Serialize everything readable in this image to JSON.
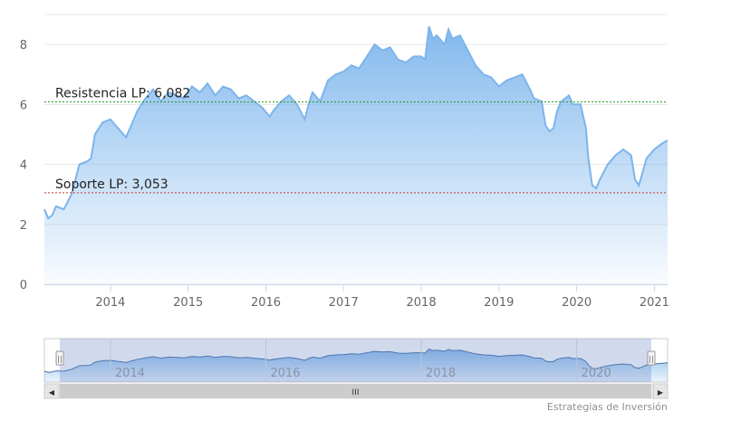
{
  "chart_data": {
    "type": "area",
    "title": "",
    "xlabel": "",
    "ylabel": "",
    "ylim": [
      0,
      9
    ],
    "xlim": [
      2013.15,
      2021.17
    ],
    "y_ticks": [
      "0",
      "2",
      "4",
      "6",
      "8"
    ],
    "x_ticks": [
      "2014",
      "2015",
      "2016",
      "2017",
      "2018",
      "2019",
      "2020",
      "2021"
    ],
    "grid": true,
    "legend": "none",
    "series": [
      {
        "x": [
          2013.15,
          2013.2,
          2013.25,
          2013.3,
          2013.4,
          2013.5,
          2013.55,
          2013.6,
          2013.7,
          2013.75,
          2013.8,
          2013.9,
          2014.0,
          2014.1,
          2014.2,
          2014.3,
          2014.35,
          2014.45,
          2014.55,
          2014.65,
          2014.75,
          2014.85,
          2014.95,
          2015.05,
          2015.15,
          2015.25,
          2015.35,
          2015.45,
          2015.55,
          2015.65,
          2015.75,
          2015.85,
          2015.95,
          2016.05,
          2016.1,
          2016.2,
          2016.3,
          2016.4,
          2016.5,
          2016.55,
          2016.6,
          2016.7,
          2016.8,
          2016.9,
          2017.0,
          2017.1,
          2017.2,
          2017.3,
          2017.4,
          2017.5,
          2017.6,
          2017.7,
          2017.8,
          2017.9,
          2018.0,
          2018.05,
          2018.1,
          2018.15,
          2018.2,
          2018.3,
          2018.35,
          2018.4,
          2018.5,
          2018.6,
          2018.7,
          2018.8,
          2018.9,
          2019.0,
          2019.1,
          2019.2,
          2019.3,
          2019.4,
          2019.45,
          2019.55,
          2019.6,
          2019.65,
          2019.7,
          2019.75,
          2019.8,
          2019.9,
          2019.95,
          2020.05,
          2020.12,
          2020.15,
          2020.2,
          2020.25,
          2020.3,
          2020.4,
          2020.5,
          2020.6,
          2020.7,
          2020.75,
          2020.8,
          2020.9,
          2021.0,
          2021.1,
          2021.17
        ],
        "values": [
          2.5,
          2.2,
          2.3,
          2.6,
          2.5,
          3.0,
          3.5,
          4.0,
          4.1,
          4.2,
          5.0,
          5.4,
          5.5,
          5.2,
          4.9,
          5.5,
          5.8,
          6.2,
          6.5,
          6.1,
          6.4,
          6.3,
          6.2,
          6.6,
          6.4,
          6.7,
          6.3,
          6.6,
          6.5,
          6.2,
          6.3,
          6.1,
          5.9,
          5.6,
          5.8,
          6.1,
          6.3,
          6.0,
          5.5,
          6.0,
          6.4,
          6.1,
          6.8,
          7.0,
          7.1,
          7.3,
          7.2,
          7.6,
          8.0,
          7.8,
          7.9,
          7.5,
          7.4,
          7.6,
          7.6,
          7.5,
          8.6,
          8.2,
          8.3,
          8.0,
          8.5,
          8.2,
          8.3,
          7.8,
          7.3,
          7.0,
          6.9,
          6.6,
          6.8,
          6.9,
          7.0,
          6.5,
          6.2,
          6.1,
          5.3,
          5.1,
          5.2,
          5.8,
          6.1,
          6.3,
          6.0,
          6.0,
          5.2,
          4.2,
          3.3,
          3.2,
          3.5,
          4.0,
          4.3,
          4.5,
          4.3,
          3.5,
          3.3,
          4.2,
          4.5,
          4.7,
          4.8
        ]
      }
    ],
    "annotations": [
      {
        "label": "Resistencia LP: 6,082",
        "value": 6.082,
        "color": "#1a9a1a"
      },
      {
        "label": "Soporte LP: 3,053",
        "value": 3.053,
        "color": "#c0392b"
      }
    ]
  },
  "navigator": {
    "x_ticks": [
      "2014",
      "2016",
      "2018",
      "2020"
    ],
    "scroll_left_icon": "◀",
    "scroll_right_icon": "▶",
    "scroll_grip_icon": "III",
    "handle_grip_icon": "||"
  },
  "colors": {
    "line": "#7cb5ec",
    "fill_top": "#7cb5ec",
    "fill_bottom": "#ffffff",
    "navigator_mask": "rgba(102,133,194,0.3)"
  },
  "credits": "Estrategias de Inversión"
}
